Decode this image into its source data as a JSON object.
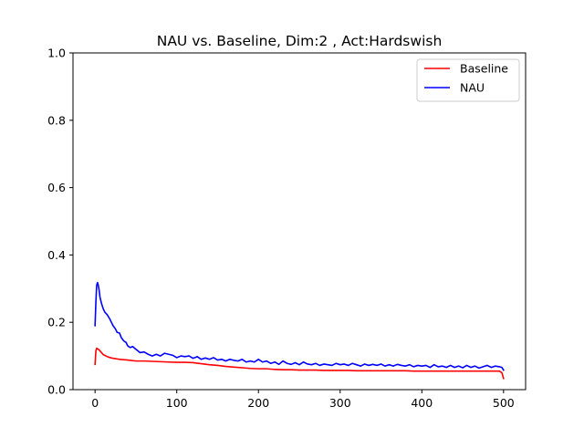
{
  "chart_data": {
    "type": "line",
    "title": "NAU vs. Baseline, Dim:2 , Act:Hardswish",
    "xlabel": "",
    "ylabel": "",
    "xlim": [
      -27,
      527
    ],
    "ylim": [
      0.0,
      1.0
    ],
    "xticks": [
      0,
      100,
      200,
      300,
      400,
      500
    ],
    "yticks": [
      0.0,
      0.2,
      0.4,
      0.6,
      0.8,
      1.0
    ],
    "xtick_labels": [
      "0",
      "100",
      "200",
      "300",
      "400",
      "500"
    ],
    "ytick_labels": [
      "0.0",
      "0.2",
      "0.4",
      "0.6",
      "0.8",
      "1.0"
    ],
    "grid": false,
    "legend_position": "top-right",
    "series": [
      {
        "name": "Baseline",
        "color": "#ff0000",
        "points": [
          [
            0,
            0.075
          ],
          [
            1,
            0.115
          ],
          [
            2,
            0.123
          ],
          [
            5,
            0.118
          ],
          [
            10,
            0.104
          ],
          [
            15,
            0.098
          ],
          [
            20,
            0.094
          ],
          [
            30,
            0.09
          ],
          [
            40,
            0.088
          ],
          [
            50,
            0.085
          ],
          [
            60,
            0.085
          ],
          [
            70,
            0.084
          ],
          [
            80,
            0.083
          ],
          [
            90,
            0.082
          ],
          [
            100,
            0.081
          ],
          [
            110,
            0.081
          ],
          [
            120,
            0.08
          ],
          [
            130,
            0.077
          ],
          [
            140,
            0.074
          ],
          [
            150,
            0.072
          ],
          [
            160,
            0.069
          ],
          [
            170,
            0.067
          ],
          [
            180,
            0.065
          ],
          [
            190,
            0.063
          ],
          [
            200,
            0.062
          ],
          [
            210,
            0.062
          ],
          [
            220,
            0.06
          ],
          [
            230,
            0.059
          ],
          [
            240,
            0.059
          ],
          [
            250,
            0.058
          ],
          [
            260,
            0.058
          ],
          [
            270,
            0.058
          ],
          [
            280,
            0.057
          ],
          [
            290,
            0.057
          ],
          [
            300,
            0.057
          ],
          [
            310,
            0.057
          ],
          [
            320,
            0.056
          ],
          [
            330,
            0.056
          ],
          [
            340,
            0.056
          ],
          [
            350,
            0.056
          ],
          [
            360,
            0.056
          ],
          [
            370,
            0.056
          ],
          [
            380,
            0.056
          ],
          [
            390,
            0.055
          ],
          [
            400,
            0.055
          ],
          [
            410,
            0.055
          ],
          [
            420,
            0.055
          ],
          [
            430,
            0.055
          ],
          [
            440,
            0.055
          ],
          [
            450,
            0.055
          ],
          [
            460,
            0.055
          ],
          [
            470,
            0.055
          ],
          [
            480,
            0.055
          ],
          [
            490,
            0.055
          ],
          [
            495,
            0.055
          ],
          [
            498,
            0.05
          ],
          [
            500,
            0.033
          ]
        ]
      },
      {
        "name": "NAU",
        "color": "#0000ff",
        "points": [
          [
            0,
            0.19
          ],
          [
            1,
            0.26
          ],
          [
            2,
            0.31
          ],
          [
            3,
            0.318
          ],
          [
            4,
            0.31
          ],
          [
            5,
            0.295
          ],
          [
            6,
            0.275
          ],
          [
            8,
            0.255
          ],
          [
            10,
            0.24
          ],
          [
            12,
            0.23
          ],
          [
            15,
            0.222
          ],
          [
            18,
            0.21
          ],
          [
            20,
            0.2
          ],
          [
            22,
            0.19
          ],
          [
            25,
            0.18
          ],
          [
            27,
            0.17
          ],
          [
            30,
            0.168
          ],
          [
            32,
            0.155
          ],
          [
            35,
            0.145
          ],
          [
            38,
            0.14
          ],
          [
            40,
            0.13
          ],
          [
            43,
            0.125
          ],
          [
            46,
            0.128
          ],
          [
            50,
            0.12
          ],
          [
            55,
            0.11
          ],
          [
            60,
            0.112
          ],
          [
            65,
            0.105
          ],
          [
            70,
            0.1
          ],
          [
            75,
            0.105
          ],
          [
            80,
            0.1
          ],
          [
            85,
            0.108
          ],
          [
            90,
            0.105
          ],
          [
            95,
            0.102
          ],
          [
            100,
            0.095
          ],
          [
            105,
            0.1
          ],
          [
            110,
            0.098
          ],
          [
            115,
            0.1
          ],
          [
            120,
            0.093
          ],
          [
            125,
            0.098
          ],
          [
            130,
            0.09
          ],
          [
            135,
            0.094
          ],
          [
            140,
            0.09
          ],
          [
            145,
            0.095
          ],
          [
            150,
            0.088
          ],
          [
            155,
            0.09
          ],
          [
            160,
            0.085
          ],
          [
            165,
            0.09
          ],
          [
            170,
            0.087
          ],
          [
            175,
            0.085
          ],
          [
            180,
            0.09
          ],
          [
            185,
            0.082
          ],
          [
            190,
            0.085
          ],
          [
            195,
            0.082
          ],
          [
            200,
            0.09
          ],
          [
            205,
            0.082
          ],
          [
            210,
            0.085
          ],
          [
            215,
            0.078
          ],
          [
            220,
            0.082
          ],
          [
            225,
            0.075
          ],
          [
            230,
            0.085
          ],
          [
            235,
            0.078
          ],
          [
            240,
            0.075
          ],
          [
            245,
            0.08
          ],
          [
            250,
            0.074
          ],
          [
            255,
            0.082
          ],
          [
            260,
            0.076
          ],
          [
            265,
            0.074
          ],
          [
            270,
            0.078
          ],
          [
            275,
            0.072
          ],
          [
            280,
            0.076
          ],
          [
            285,
            0.074
          ],
          [
            290,
            0.072
          ],
          [
            295,
            0.078
          ],
          [
            300,
            0.074
          ],
          [
            305,
            0.076
          ],
          [
            310,
            0.072
          ],
          [
            315,
            0.078
          ],
          [
            320,
            0.074
          ],
          [
            325,
            0.07
          ],
          [
            330,
            0.076
          ],
          [
            335,
            0.072
          ],
          [
            340,
            0.075
          ],
          [
            345,
            0.072
          ],
          [
            350,
            0.076
          ],
          [
            355,
            0.07
          ],
          [
            360,
            0.074
          ],
          [
            365,
            0.07
          ],
          [
            370,
            0.075
          ],
          [
            375,
            0.072
          ],
          [
            380,
            0.07
          ],
          [
            385,
            0.074
          ],
          [
            390,
            0.068
          ],
          [
            395,
            0.072
          ],
          [
            400,
            0.07
          ],
          [
            405,
            0.072
          ],
          [
            410,
            0.066
          ],
          [
            415,
            0.074
          ],
          [
            420,
            0.068
          ],
          [
            425,
            0.07
          ],
          [
            430,
            0.066
          ],
          [
            435,
            0.072
          ],
          [
            440,
            0.066
          ],
          [
            445,
            0.07
          ],
          [
            450,
            0.065
          ],
          [
            455,
            0.072
          ],
          [
            460,
            0.066
          ],
          [
            465,
            0.07
          ],
          [
            470,
            0.064
          ],
          [
            475,
            0.068
          ],
          [
            480,
            0.072
          ],
          [
            485,
            0.066
          ],
          [
            490,
            0.07
          ],
          [
            495,
            0.068
          ],
          [
            498,
            0.066
          ],
          [
            500,
            0.058
          ]
        ]
      }
    ]
  }
}
